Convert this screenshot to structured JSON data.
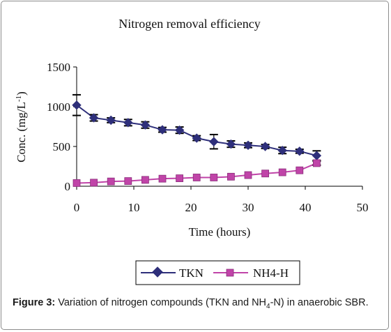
{
  "chart_data": {
    "type": "line",
    "title": "Nitrogen removal efficiency",
    "xlabel": "Time (hours)",
    "ylabel": {
      "main": "Conc. (mg/L",
      "sup": "-1",
      "end": ")"
    },
    "xlim": [
      0,
      50
    ],
    "ylim": [
      0,
      1500
    ],
    "xticks": [
      "0",
      "10",
      "20",
      "30",
      "40",
      "50"
    ],
    "yticks": [
      "0",
      "500",
      "1000",
      "1500"
    ],
    "grid": false,
    "legend_position": "bottom",
    "x": [
      0,
      3,
      6,
      9,
      12,
      15,
      18,
      21,
      24,
      27,
      30,
      33,
      36,
      39,
      42
    ],
    "series": [
      {
        "name": "TKN",
        "color": "#2e2f7a",
        "marker": "diamond",
        "values": [
          1020,
          860,
          830,
          800,
          770,
          710,
          705,
          605,
          560,
          530,
          515,
          500,
          450,
          440,
          385
        ],
        "error": [
          130,
          40,
          30,
          40,
          40,
          30,
          40,
          30,
          90,
          40,
          30,
          25,
          40,
          25,
          60
        ]
      },
      {
        "name": "NH4-H",
        "color": "#c044a8",
        "marker": "square",
        "values": [
          40,
          45,
          60,
          65,
          80,
          95,
          100,
          110,
          110,
          120,
          140,
          160,
          175,
          200,
          290
        ],
        "error": [
          0,
          0,
          0,
          0,
          0,
          0,
          0,
          0,
          0,
          0,
          0,
          0,
          0,
          0,
          25
        ]
      }
    ]
  },
  "caption": {
    "label": "Figure 3:",
    "text_a": " Variation of nitrogen compounds (TKN and NH",
    "sub": "4",
    "text_b": "-N) in anaerobic SBR."
  }
}
